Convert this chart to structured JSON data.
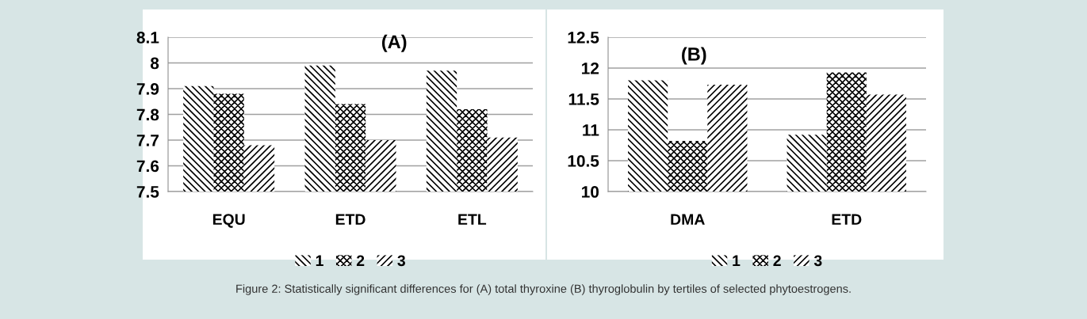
{
  "chart_data": [
    {
      "type": "bar",
      "categories": [
        "EQU",
        "ETD",
        "ETL"
      ],
      "series": [
        {
          "name": "1",
          "color": "#000000",
          "values": [
            7.91,
            7.99,
            7.97
          ]
        },
        {
          "name": "2",
          "color": "#000000",
          "values": [
            7.88,
            7.84,
            7.82
          ]
        },
        {
          "name": "3",
          "color": "#000000",
          "values": [
            7.68,
            7.7,
            7.71
          ]
        }
      ],
      "ylim": [
        7.5,
        8.1
      ],
      "yticks": [
        7.5,
        7.6,
        7.7,
        7.8,
        7.9,
        {
          "value": 8.0,
          "label": "8"
        },
        8.1
      ],
      "grid": "y",
      "legend": "bottom",
      "annotations": [
        "(A)",
        "Figure 2: Statistically significant differences for (A) total thyroxine (B) thyroglobulin by tertiles of selected phytoestrogens."
      ]
    },
    {
      "type": "bar",
      "categories": [
        "DMA",
        "ETD"
      ],
      "series": [
        {
          "name": "1",
          "color": "#000000",
          "values": [
            11.8,
            10.92
          ]
        },
        {
          "name": "2",
          "color": "#000000",
          "values": [
            10.82,
            11.93
          ]
        },
        {
          "name": "3",
          "color": "#000000",
          "values": [
            11.73,
            11.57
          ]
        }
      ],
      "ylim": [
        10,
        12.5
      ],
      "yticks": [
        10,
        10.5,
        11,
        11.5,
        12,
        12.5
      ],
      "grid": "y",
      "legend": "bottom",
      "annotations": [
        "(B)"
      ]
    }
  ]
}
